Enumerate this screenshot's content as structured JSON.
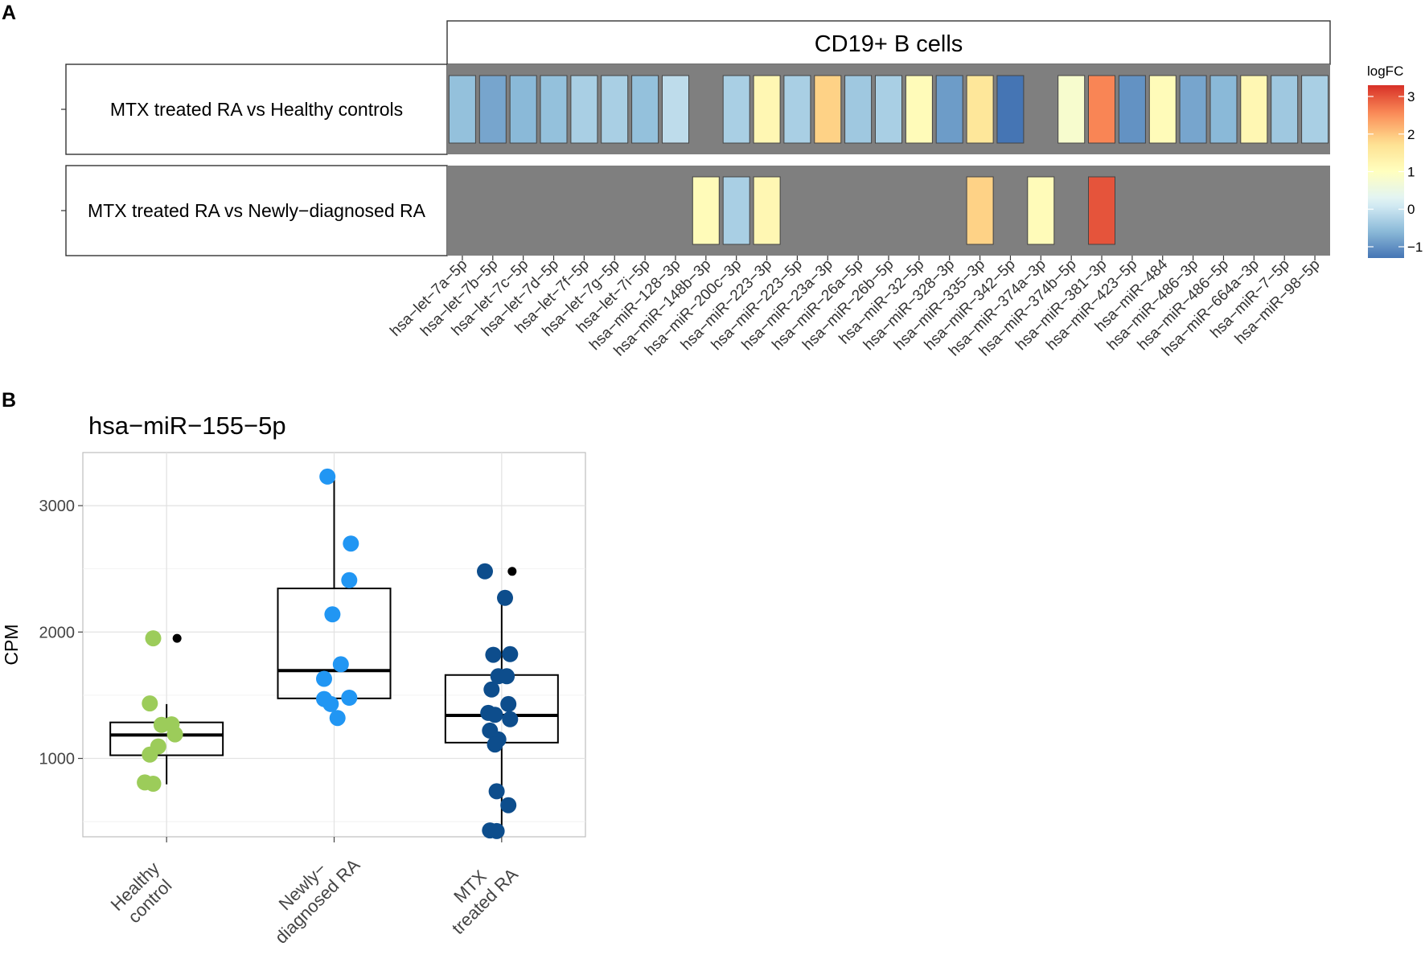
{
  "panel_a_letter": "A",
  "panel_b_letter": "B",
  "chart_data": [
    {
      "type": "heatmap",
      "title": "CD19+ B cells",
      "legend_title": "logFC",
      "legend_ticks": [
        "3",
        "2",
        "1",
        "0",
        "−1"
      ],
      "legend_tick_values": [
        3,
        2,
        1,
        0,
        -1
      ],
      "color_range": [
        -1.3,
        3.3
      ],
      "color_scale": [
        "#4575b4",
        "#91bfdb",
        "#e0f3f8",
        "#ffffbf",
        "#fee090",
        "#fc8d59",
        "#d73027"
      ],
      "na_color": "#7f7f7f",
      "rows": [
        "MTX treated RA vs Healthy controls",
        "MTX treated RA vs Newly−diagnosed RA"
      ],
      "columns": [
        "hsa−let−7a−5p",
        "hsa−let−7b−5p",
        "hsa−let−7c−5p",
        "hsa−let−7d−5p",
        "hsa−let−7f−5p",
        "hsa−let−7g−5p",
        "hsa−let−7i−5p",
        "hsa−miR−128−3p",
        "hsa−miR−148b−3p",
        "hsa−miR−200c−3p",
        "hsa−miR−223−3p",
        "hsa−miR−223−5p",
        "hsa−miR−23a−3p",
        "hsa−miR−26a−5p",
        "hsa−miR−26b−5p",
        "hsa−miR−32−5p",
        "hsa−miR−328−3p",
        "hsa−miR−335−3p",
        "hsa−miR−342−5p",
        "hsa−miR−374a−3p",
        "hsa−miR−374b−5p",
        "hsa−miR−381−3p",
        "hsa−miR−423−5p",
        "hsa−miR−484",
        "hsa−miR−486−3p",
        "hsa−miR−486−5p",
        "hsa−miR−664a−3p",
        "hsa−miR−7−5p",
        "hsa−miR−98−5p"
      ],
      "values": [
        [
          -0.5,
          -0.8,
          -0.6,
          -0.5,
          -0.3,
          -0.3,
          -0.5,
          -0.1,
          null,
          -0.3,
          1.2,
          -0.3,
          1.9,
          -0.4,
          -0.3,
          1.1,
          -0.9,
          1.6,
          -1.3,
          null,
          0.8,
          2.6,
          -1.0,
          1.1,
          -0.8,
          -0.6,
          1.2,
          -0.4,
          -0.3
        ],
        [
          null,
          null,
          null,
          null,
          null,
          null,
          null,
          null,
          1.1,
          -0.3,
          1.2,
          null,
          null,
          null,
          null,
          null,
          null,
          1.9,
          null,
          1.1,
          null,
          3.0,
          null,
          null,
          null,
          null,
          null,
          null,
          null
        ]
      ]
    },
    {
      "type": "box",
      "title": "hsa−miR−155−5p",
      "ylabel": "CPM",
      "ylim": [
        380,
        3420
      ],
      "yticks": [
        1000,
        2000,
        3000
      ],
      "ytick_labels": [
        "1000",
        "2000",
        "3000"
      ],
      "grid": true,
      "categories": [
        "Healthy control",
        "Newly− diagnosed RA",
        "MTX treated RA"
      ],
      "category_lines": [
        [
          "Healthy",
          "control"
        ],
        [
          "Newly−",
          "diagnosed RA"
        ],
        [
          "MTX",
          "treated RA"
        ]
      ],
      "colors": [
        "#9ccc5a",
        "#2196f3",
        "#0d4d8c"
      ],
      "boxes": [
        {
          "q1": 1025,
          "median": 1185,
          "q3": 1285,
          "whisker_low": 795,
          "whisker_high": 1430,
          "outliers": [
            1950
          ]
        },
        {
          "q1": 1475,
          "median": 1695,
          "q3": 2345,
          "whisker_low": 1320,
          "whisker_high": 3230,
          "outliers": []
        },
        {
          "q1": 1125,
          "median": 1340,
          "q3": 1660,
          "whisker_low": 420,
          "whisker_high": 2270,
          "outliers": [
            2480
          ]
        }
      ],
      "points": [
        [
          [
            -0.08,
            1950
          ],
          [
            -0.1,
            1435
          ],
          [
            0.03,
            1270
          ],
          [
            -0.03,
            1265
          ],
          [
            0.05,
            1190
          ],
          [
            -0.05,
            1095
          ],
          [
            -0.1,
            1030
          ],
          [
            -0.13,
            810
          ],
          [
            -0.08,
            800
          ]
        ],
        [
          [
            -0.04,
            3230
          ],
          [
            0.1,
            2700
          ],
          [
            0.09,
            2410
          ],
          [
            -0.01,
            2140
          ],
          [
            0.04,
            1745
          ],
          [
            -0.06,
            1630
          ],
          [
            -0.06,
            1470
          ],
          [
            0.09,
            1480
          ],
          [
            -0.02,
            1430
          ],
          [
            0.02,
            1320
          ]
        ],
        [
          [
            -0.1,
            2480
          ],
          [
            0.02,
            2270
          ],
          [
            -0.05,
            1820
          ],
          [
            0.05,
            1825
          ],
          [
            -0.02,
            1650
          ],
          [
            0.03,
            1650
          ],
          [
            -0.06,
            1545
          ],
          [
            0.04,
            1430
          ],
          [
            -0.08,
            1360
          ],
          [
            -0.04,
            1345
          ],
          [
            0.05,
            1310
          ],
          [
            -0.07,
            1220
          ],
          [
            -0.02,
            1150
          ],
          [
            -0.04,
            1110
          ],
          [
            -0.03,
            740
          ],
          [
            0.04,
            630
          ],
          [
            -0.07,
            430
          ],
          [
            -0.03,
            425
          ]
        ]
      ]
    }
  ]
}
